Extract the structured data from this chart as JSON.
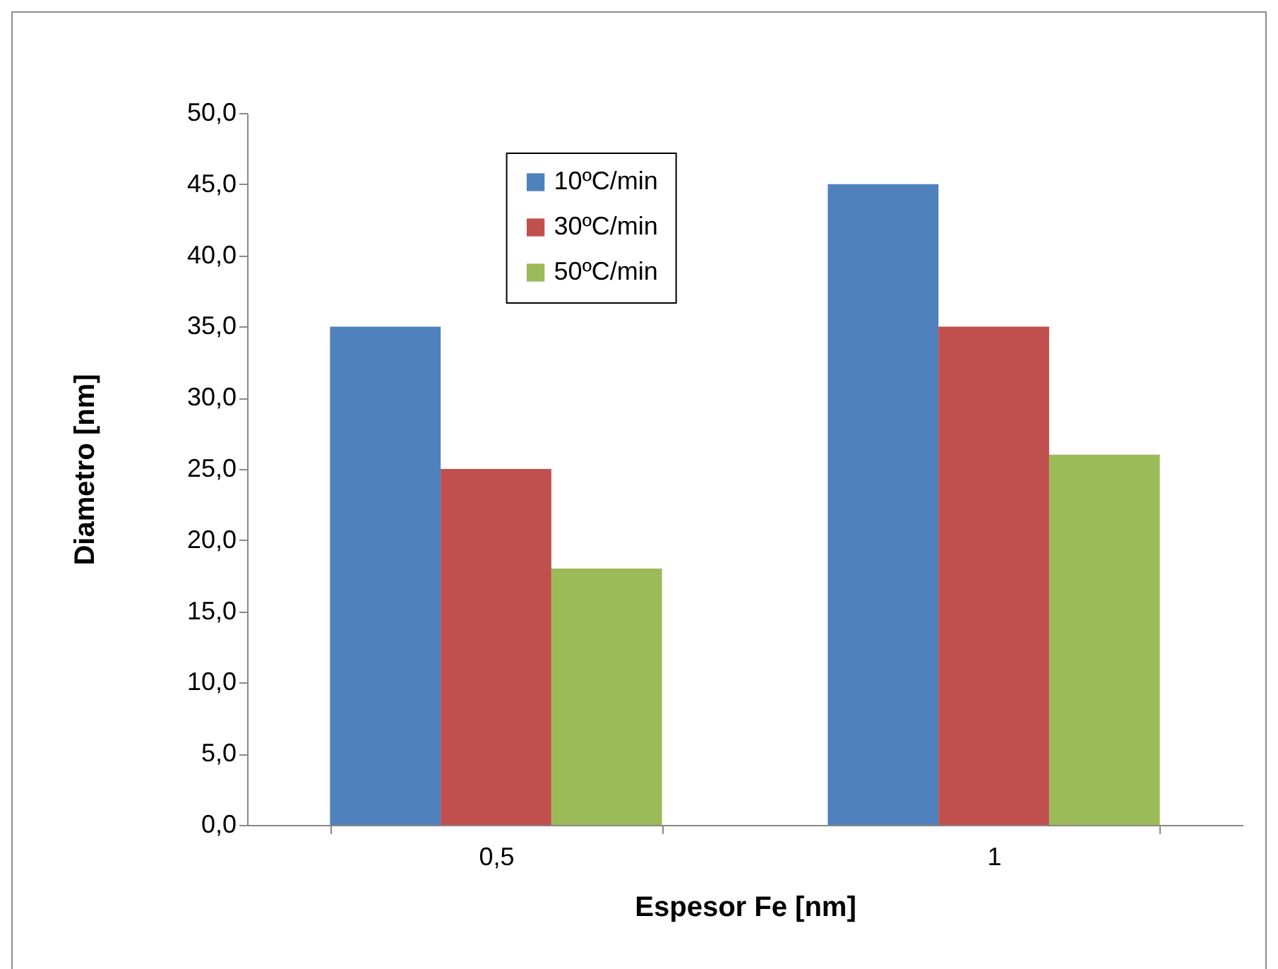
{
  "chart_data": {
    "type": "bar",
    "xlabel": "Espesor Fe [nm]",
    "ylabel": "Diametro [nm]",
    "categories": [
      "0,5",
      "1"
    ],
    "series": [
      {
        "name": "10ºC/min",
        "color": "#4f81bd",
        "values": [
          35,
          45
        ]
      },
      {
        "name": "30ºC/min",
        "color": "#c0504d",
        "values": [
          25,
          35
        ]
      },
      {
        "name": "50ºC/min",
        "color": "#9bbb59",
        "values": [
          18,
          26
        ]
      }
    ],
    "ylim": [
      0,
      50
    ],
    "yticks": [
      {
        "value": 0,
        "label": "0,0"
      },
      {
        "value": 5,
        "label": "5,0"
      },
      {
        "value": 10,
        "label": "10,0"
      },
      {
        "value": 15,
        "label": "15,0"
      },
      {
        "value": 20,
        "label": "20,0"
      },
      {
        "value": 25,
        "label": "25,0"
      },
      {
        "value": 30,
        "label": "30,0"
      },
      {
        "value": 35,
        "label": "35,0"
      },
      {
        "value": 40,
        "label": "40,0"
      },
      {
        "value": 45,
        "label": "45,0"
      },
      {
        "value": 50,
        "label": "50,0"
      }
    ],
    "grid": false,
    "legend": "top"
  }
}
